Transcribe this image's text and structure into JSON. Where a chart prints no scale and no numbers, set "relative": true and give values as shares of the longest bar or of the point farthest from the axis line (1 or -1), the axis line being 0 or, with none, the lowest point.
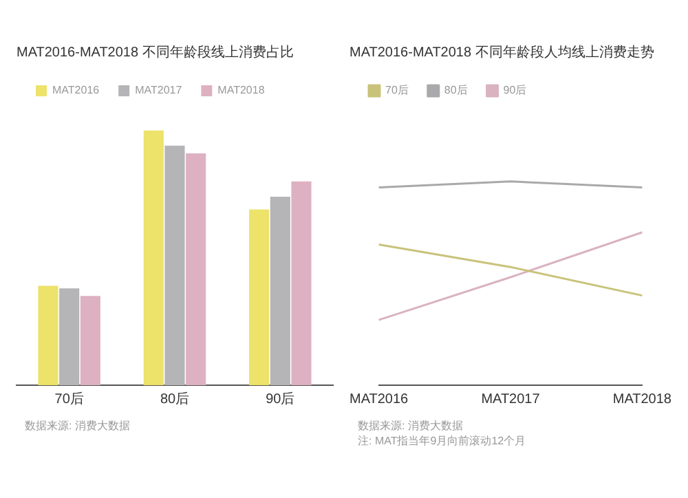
{
  "chart_data": [
    {
      "type": "bar",
      "title": "MAT2016-MAT2018 不同年龄段线上消费占比",
      "categories": [
        "70后",
        "80后",
        "90后"
      ],
      "relative": true,
      "legend": "top left",
      "grid": false,
      "series": [
        {
          "name": "MAT2016",
          "color": "#ede26a",
          "values": [
            0.39,
            1,
            0.69
          ]
        },
        {
          "name": "MAT2017",
          "color": "#b5b5b7",
          "values": [
            0.38,
            0.94,
            0.74
          ]
        },
        {
          "name": "MAT2018",
          "color": "#ddb1c1",
          "values": [
            0.35,
            0.91,
            0.8
          ]
        }
      ],
      "annotations": [
        "数据来源: 消费大数据"
      ]
    },
    {
      "type": "line",
      "title": "MAT2016-MAT2018 不同年龄段人均线上消费走势",
      "categories": [
        "MAT2016",
        "MAT2017",
        "MAT2018"
      ],
      "relative": true,
      "legend": "top left",
      "grid": false,
      "marker": "none",
      "series": [
        {
          "name": "70后",
          "color": "#c9c27a",
          "values": [
            0.69,
            0.58,
            0.44
          ]
        },
        {
          "name": "80后",
          "color": "#a9a9ab",
          "values": [
            0.97,
            1,
            0.97
          ]
        },
        {
          "name": "90后",
          "color": "#d9b3c0",
          "values": [
            0.32,
            0.53,
            0.75
          ]
        }
      ],
      "annotations": [
        "数据来源: 消费大数据",
        "注: MAT指当年9月向前滚动12个月"
      ]
    }
  ]
}
